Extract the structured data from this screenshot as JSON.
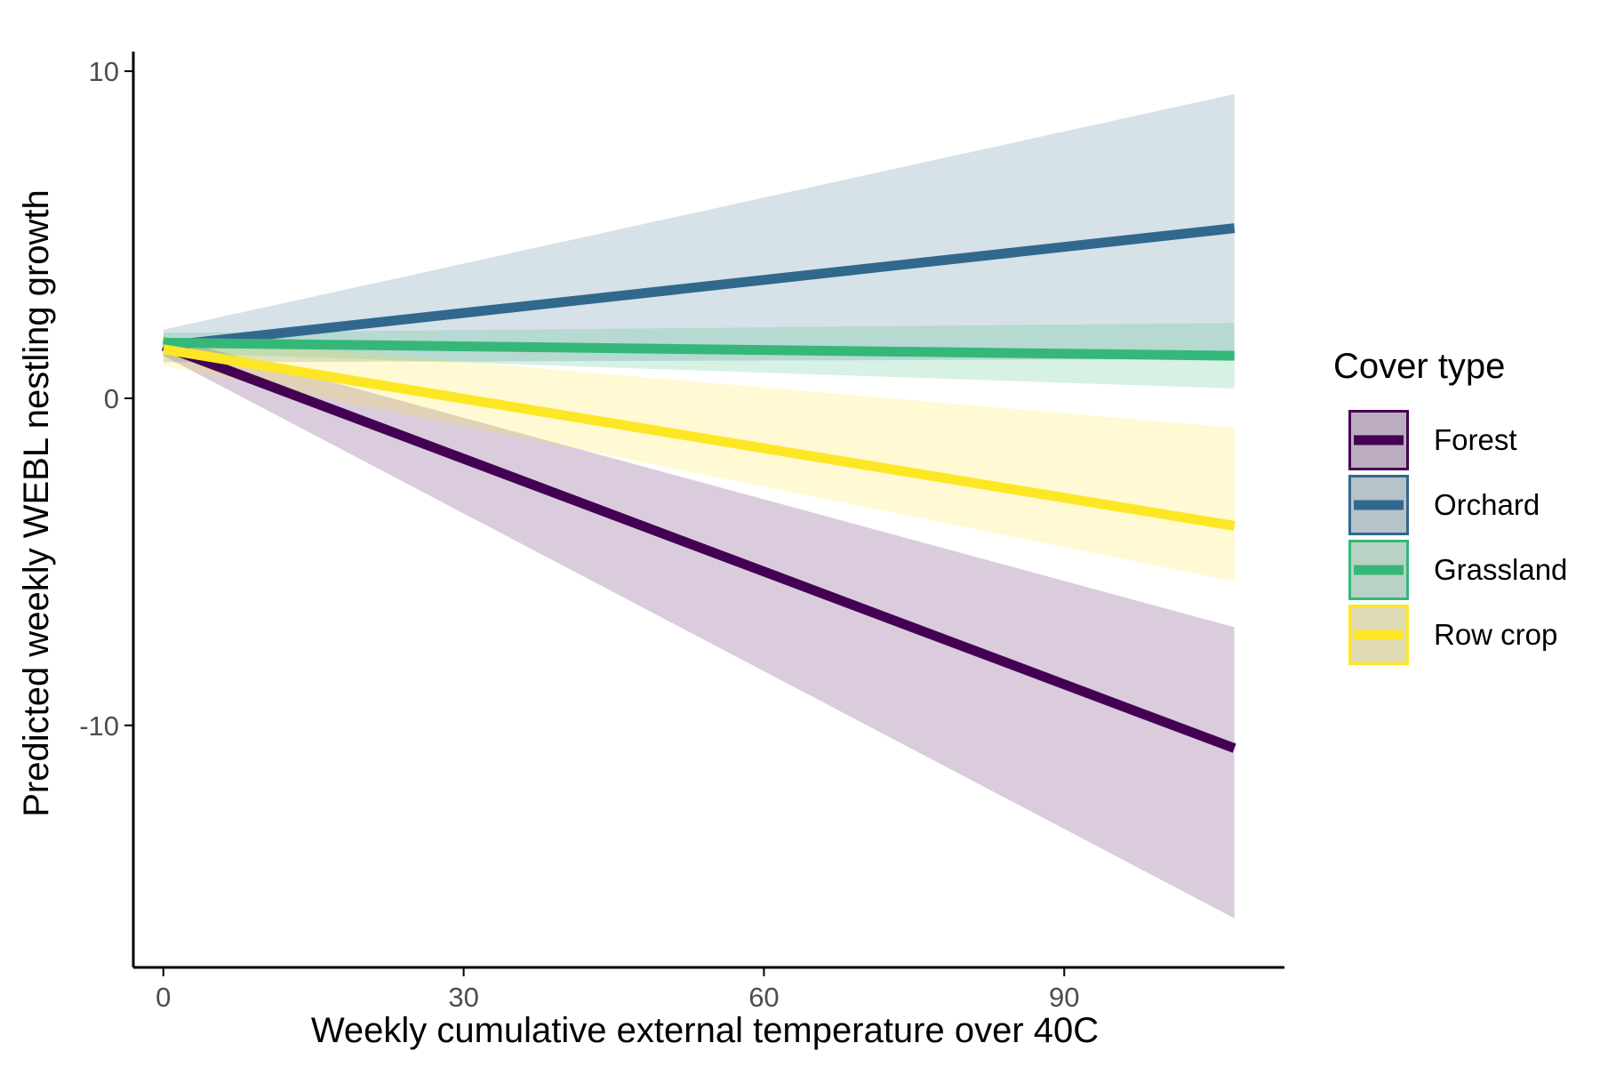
{
  "chart_data": {
    "type": "line",
    "xlabel": "Weekly cumulative external temperature over 40C",
    "ylabel": "Predicted weekly WEBL nestling growth",
    "xlim": [
      -3,
      112
    ],
    "ylim": [
      -17.4,
      10.6
    ],
    "x_ticks": [
      0,
      30,
      60,
      90
    ],
    "x_tick_labels": [
      "0",
      "30",
      "60",
      "90"
    ],
    "y_ticks": [
      -10,
      0,
      10
    ],
    "y_tick_labels": [
      "-10",
      "0",
      "10"
    ],
    "grid": false,
    "legend": {
      "title": "Cover type",
      "position": "right"
    },
    "x_range": [
      0,
      107
    ],
    "series": [
      {
        "name": "Forest",
        "color": "#440154",
        "fill": "#440154",
        "fill_opacity": 0.2,
        "y": [
          1.6,
          -10.7
        ],
        "lower": [
          1.3,
          -15.9
        ],
        "upper": [
          1.9,
          -7.0
        ]
      },
      {
        "name": "Orchard",
        "color": "#31688E",
        "fill": "#31688E",
        "fill_opacity": 0.2,
        "y": [
          1.6,
          5.2
        ],
        "lower": [
          1.1,
          1.2
        ],
        "upper": [
          2.1,
          9.3
        ]
      },
      {
        "name": "Grassland",
        "color": "#35B779",
        "fill": "#35B779",
        "fill_opacity": 0.2,
        "y": [
          1.7,
          1.3
        ],
        "lower": [
          1.4,
          0.3
        ],
        "upper": [
          2.0,
          2.3
        ]
      },
      {
        "name": "Row crop",
        "color": "#FDE725",
        "fill": "#FDE725",
        "fill_opacity": 0.2,
        "y": [
          1.5,
          -3.9
        ],
        "lower": [
          1.0,
          -5.6
        ],
        "upper": [
          1.9,
          -0.9
        ]
      }
    ]
  },
  "legend_key_fill": "#D9D9D9",
  "axis_color": "#000000",
  "tick_label_color": "#4D4D4D"
}
